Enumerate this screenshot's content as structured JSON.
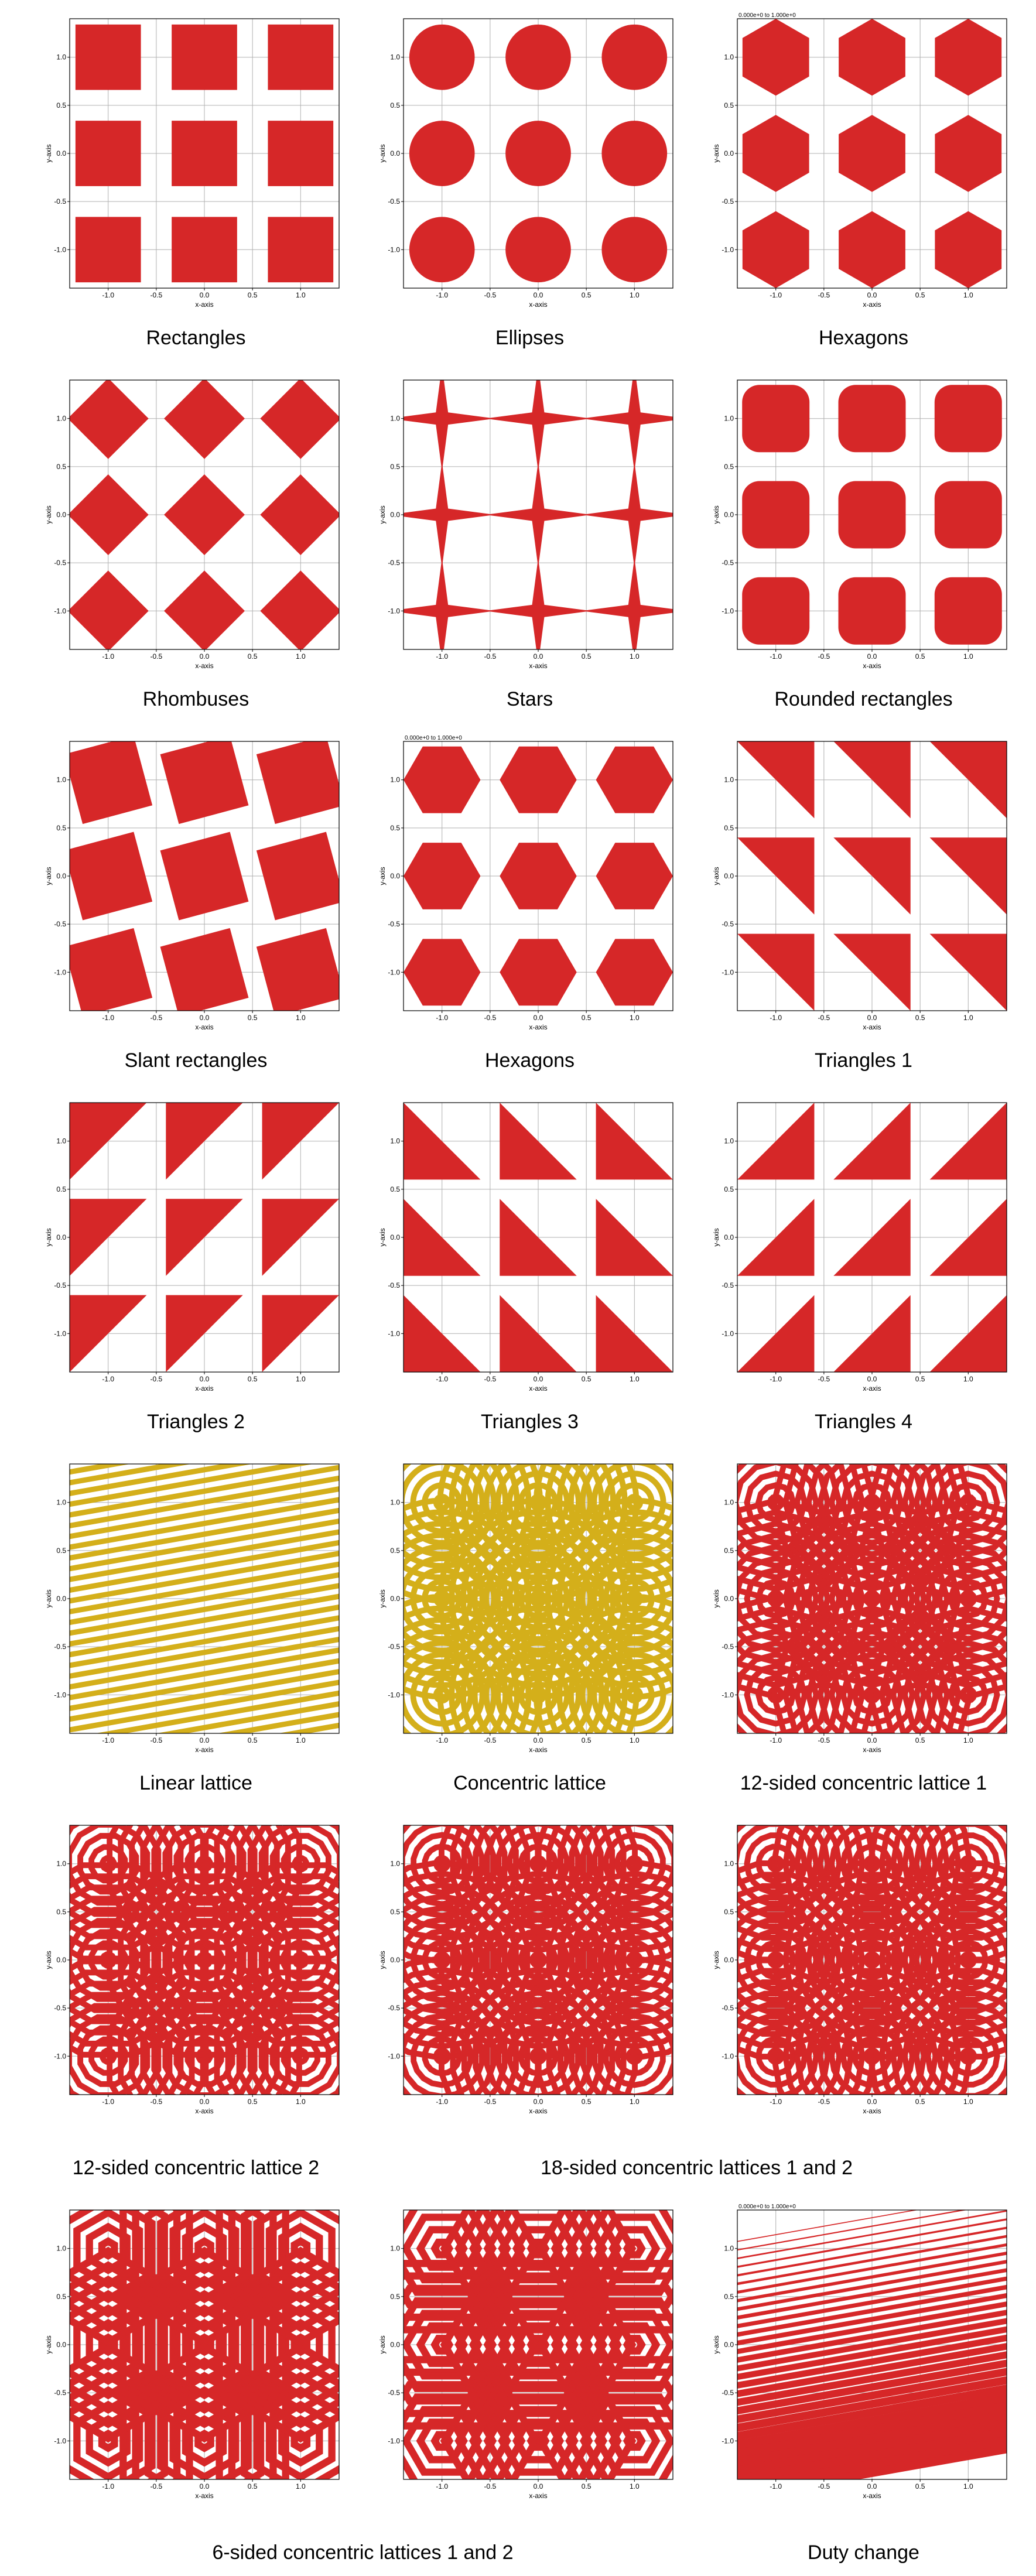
{
  "plot": {
    "size": 460,
    "svg_size": 520,
    "xlabel": "x-axis",
    "ylabel": "y-axis",
    "xlim": [
      -1.4,
      1.4
    ],
    "ylim": [
      -1.4,
      1.4
    ],
    "ticks": [
      -1.0,
      -0.5,
      0.0,
      0.5,
      1.0
    ],
    "tick_labels": [
      "-1.0",
      "-0.5",
      "0.0",
      "0.5",
      "1.0"
    ],
    "grid_color": "#b0b0b0",
    "border_color": "#000000",
    "shape_color": "#d62728",
    "gold_color": "#d4af1a",
    "bg_color": "#ffffff",
    "tick_fontsize": 12,
    "label_fontsize": 12,
    "lattice_centers": [
      -1,
      0,
      1
    ],
    "tiny_title": "0.000e+0  to  1.000e+0"
  },
  "panels": [
    {
      "id": "rect",
      "caption": "Rectangles",
      "shape": "rect",
      "size": 0.68,
      "tiny_title": false,
      "color": "red"
    },
    {
      "id": "ellipse",
      "caption": "Ellipses",
      "shape": "circle",
      "size": 0.34,
      "tiny_title": false,
      "color": "red"
    },
    {
      "id": "hexagon",
      "caption": "Hexagons",
      "shape": "hexagon",
      "size": 0.4,
      "tiny_title": true,
      "color": "red",
      "rot": 0
    },
    {
      "id": "rhombus",
      "caption": "Rhombuses",
      "shape": "diamond",
      "size": 0.42,
      "tiny_title": false,
      "color": "red"
    },
    {
      "id": "star",
      "caption": "Stars",
      "shape": "star4",
      "size": 0.55,
      "inner": 0.09,
      "tiny_title": false,
      "color": "red"
    },
    {
      "id": "rounded",
      "caption": "Rounded rectangles",
      "shape": "roundrect",
      "size": 0.7,
      "rx": 0.18,
      "tiny_title": false,
      "color": "red"
    },
    {
      "id": "slant",
      "caption": "Slant rectangles",
      "shape": "slantrect",
      "size": 0.75,
      "angle": 15,
      "tiny_title": false,
      "color": "red"
    },
    {
      "id": "hexagon2",
      "caption": "Hexagons",
      "shape": "hexagon",
      "size": 0.4,
      "tiny_title": true,
      "color": "red",
      "rot": 30
    },
    {
      "id": "tri1",
      "caption": "Triangles 1",
      "shape": "triangle",
      "variant": 1,
      "size": 0.8,
      "tiny_title": false,
      "color": "red"
    },
    {
      "id": "tri2",
      "caption": "Triangles 2",
      "shape": "triangle",
      "variant": 2,
      "size": 0.8,
      "tiny_title": false,
      "color": "red"
    },
    {
      "id": "tri3",
      "caption": "Triangles 3",
      "shape": "triangle",
      "variant": 3,
      "size": 0.8,
      "tiny_title": false,
      "color": "red"
    },
    {
      "id": "tri4",
      "caption": "Triangles 4",
      "shape": "triangle",
      "variant": 4,
      "size": 0.8,
      "tiny_title": false,
      "color": "red"
    },
    {
      "id": "linear",
      "caption": "Linear lattice",
      "shape": "linear",
      "color": "gold",
      "stripe_w": 0.055,
      "angle": 10,
      "tiny_title": false
    },
    {
      "id": "concentric",
      "caption": "Concentric lattice",
      "shape": "concentric",
      "color": "gold",
      "sides": 64,
      "rings": 9,
      "ring_w": 0.06,
      "tiny_title": false
    },
    {
      "id": "conc12a",
      "caption": "12-sided concentric lattice 1",
      "shape": "concentric",
      "color": "red",
      "sides": 12,
      "rings": 9,
      "ring_w": 0.06,
      "rot": 0,
      "tiny_title": false
    },
    {
      "id": "conc12b",
      "caption": "12-sided concentric lattice 2",
      "shape": "concentric",
      "color": "red",
      "sides": 12,
      "rings": 9,
      "ring_w": 0.06,
      "rot": 15,
      "tiny_title": false
    },
    {
      "id": "conc18a",
      "caption": "18-sided concentric lattices 1 and 2",
      "shape": "concentric",
      "color": "red",
      "sides": 18,
      "rings": 9,
      "ring_w": 0.06,
      "rot": 0,
      "tiny_title": false
    },
    {
      "id": "conc18b",
      "caption": "",
      "shape": "concentric",
      "color": "red",
      "sides": 18,
      "rings": 9,
      "ring_w": 0.06,
      "rot": 10,
      "tiny_title": false
    },
    {
      "id": "conc6a",
      "caption": "6-sided concentric lattices 1 and 2",
      "shape": "concentric",
      "color": "red",
      "sides": 6,
      "rings": 7,
      "ring_w": 0.075,
      "rot": 0,
      "tiny_title": false
    },
    {
      "id": "conc6b",
      "caption": "",
      "shape": "concentric",
      "color": "red",
      "sides": 6,
      "rings": 7,
      "ring_w": 0.075,
      "rot": 30,
      "tiny_title": false
    },
    {
      "id": "duty",
      "caption": "Duty change",
      "shape": "duty",
      "color": "red",
      "angle": 10,
      "tiny_title": true
    }
  ],
  "layout_rows": [
    {
      "cells": [
        "rect",
        "ellipse",
        "hexagon"
      ]
    },
    {
      "cells": [
        "rhombus",
        "star",
        "rounded"
      ]
    },
    {
      "cells": [
        "slant",
        "hexagon2",
        "tri1"
      ]
    },
    {
      "cells": [
        "tri2",
        "tri3",
        "tri4"
      ]
    },
    {
      "cells": [
        "linear",
        "concentric",
        "conc12a"
      ]
    },
    {
      "cells": [
        "conc12b",
        "conc18a",
        "conc18b"
      ],
      "caption_group": [
        [
          "conc12b"
        ],
        [
          "conc18a",
          "conc18b"
        ]
      ]
    },
    {
      "cells": [
        "conc6a",
        "conc6b",
        "duty"
      ],
      "caption_group": [
        [
          "conc6a",
          "conc6b"
        ],
        [
          "duty"
        ]
      ]
    }
  ]
}
